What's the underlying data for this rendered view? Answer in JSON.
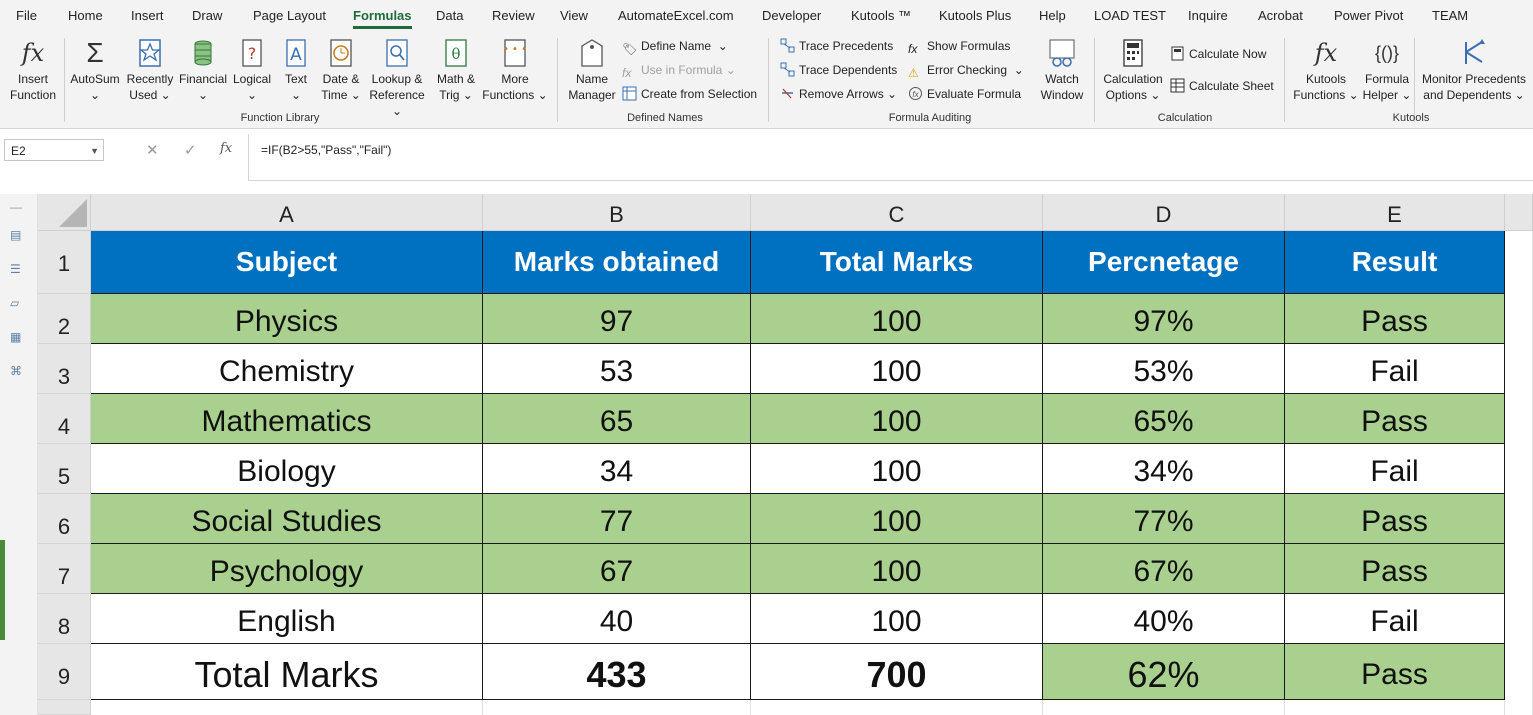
{
  "menu": {
    "tabs": [
      "File",
      "Home",
      "Insert",
      "Draw",
      "Page Layout",
      "Formulas",
      "Data",
      "Review",
      "View",
      "AutomateExcel.com",
      "Developer",
      "Kutools ™",
      "Kutools Plus",
      "Help",
      "LOAD TEST",
      "Inquire",
      "Acrobat",
      "Power Pivot",
      "TEAM"
    ],
    "active": "Formulas"
  },
  "ribbon": {
    "insert_function": [
      "Insert",
      "Function"
    ],
    "autosum": "AutoSum",
    "recently_used": [
      "Recently",
      "Used"
    ],
    "financial": "Financial",
    "logical": "Logical",
    "text": "Text",
    "date_time": [
      "Date &",
      "Time"
    ],
    "lookup": [
      "Lookup &",
      "Reference"
    ],
    "math_trig": [
      "Math &",
      "Trig"
    ],
    "more_functions": [
      "More",
      "Functions"
    ],
    "function_library_label": "Function Library",
    "name_manager": [
      "Name",
      "Manager"
    ],
    "define_name": "Define Name",
    "use_in_formula": "Use in Formula",
    "create_from_selection": "Create from Selection",
    "defined_names_label": "Defined Names",
    "trace_precedents": "Trace Precedents",
    "trace_dependents": "Trace Dependents",
    "remove_arrows": "Remove Arrows",
    "show_formulas": "Show Formulas",
    "error_checking": "Error Checking",
    "evaluate_formula": "Evaluate Formula",
    "watch_window": [
      "Watch",
      "Window"
    ],
    "formula_auditing_label": "Formula Auditing",
    "calculation_options": [
      "Calculation",
      "Options"
    ],
    "calculate_now": "Calculate Now",
    "calculate_sheet": "Calculate Sheet",
    "calculation_label": "Calculation",
    "kutools_functions": [
      "Kutools",
      "Functions"
    ],
    "formula_helper": [
      "Formula",
      "Helper"
    ],
    "monitor_precedents": [
      "Monitor Precedents",
      "and Dependents"
    ],
    "kutools_label": "Kutools"
  },
  "formula_bar": {
    "name_box": "E2",
    "formula": "=IF(B2>55,\"Pass\",\"Fail\")"
  },
  "grid": {
    "columns": [
      "A",
      "B",
      "C",
      "D",
      "E"
    ],
    "rows": [
      "1",
      "2",
      "3",
      "4",
      "5",
      "6",
      "7",
      "8",
      "9"
    ],
    "header": [
      "Subject",
      "Marks obtained",
      "Total Marks",
      "Percnetage",
      "Result"
    ],
    "data": [
      [
        "Physics",
        "97",
        "100",
        "97%",
        "Pass"
      ],
      [
        "Chemistry",
        "53",
        "100",
        "53%",
        "Fail"
      ],
      [
        "Mathematics",
        "65",
        "100",
        "65%",
        "Pass"
      ],
      [
        "Biology",
        "34",
        "100",
        "34%",
        "Fail"
      ],
      [
        "Social Studies",
        "77",
        "100",
        "77%",
        "Pass"
      ],
      [
        "Psychology",
        "67",
        "100",
        "67%",
        "Pass"
      ],
      [
        "English",
        "40",
        "100",
        "40%",
        "Fail"
      ]
    ],
    "total": [
      "Total Marks",
      "433",
      "700",
      "62%",
      "Pass"
    ]
  },
  "colors": {
    "header_fill": "#0070c0",
    "pass_fill": "#a9d08e",
    "accent": "#1e6b3a"
  }
}
